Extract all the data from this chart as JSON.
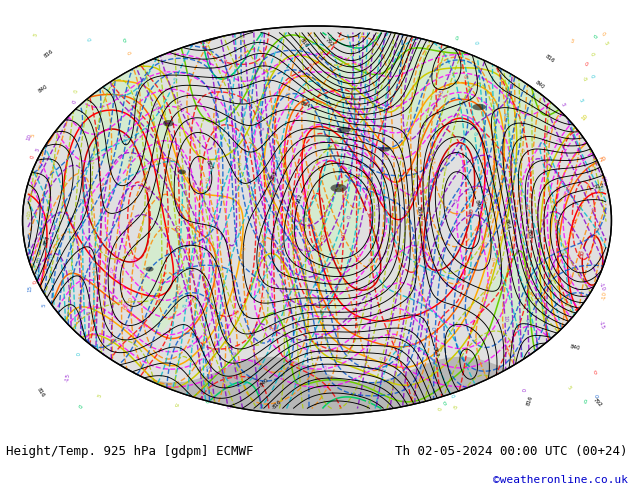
{
  "title_left": "Height/Temp. 925 hPa [gdpm] ECMWF",
  "title_right": "Th 02-05-2024 00:00 UTC (00+24)",
  "copyright": "©weatheronline.co.uk",
  "bg_color": "#ffffff",
  "map_bg": "#e0e0e0",
  "land_color": "#d4edcc",
  "gray_color": "#aaaaaa",
  "title_fontsize": 9,
  "copyright_color": "#0000cc",
  "fig_width": 6.34,
  "fig_height": 4.9
}
